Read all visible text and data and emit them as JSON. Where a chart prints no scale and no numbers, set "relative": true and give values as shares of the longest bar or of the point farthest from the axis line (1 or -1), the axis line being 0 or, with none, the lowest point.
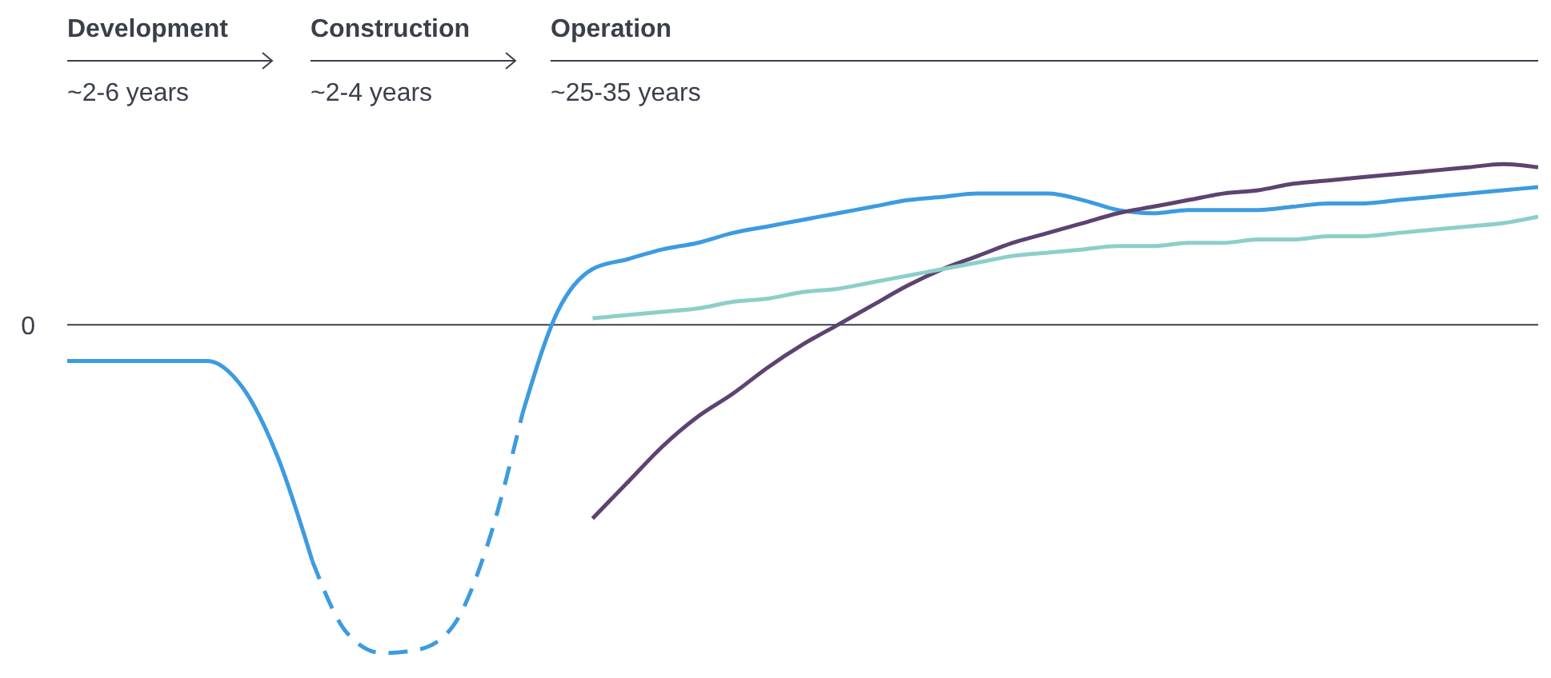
{
  "chart_data": {
    "type": "line",
    "relative": true,
    "marker": "none",
    "line_style": "solid",
    "annotations": [
      "Development",
      "~2-6 years",
      "Construction",
      "~2-4 years",
      "Operation",
      "~25-35 years"
    ],
    "ref_lines": [
      {
        "axis": "y",
        "value": 0,
        "label": "0",
        "color": "#3a3f4a"
      }
    ],
    "categories": [
      null,
      null,
      null,
      null,
      null,
      null,
      null,
      null,
      null,
      null,
      null,
      null,
      null,
      null,
      null,
      null,
      null,
      null,
      null,
      null,
      null,
      null,
      null,
      null,
      null,
      null,
      null,
      null,
      null,
      null,
      null,
      null,
      null,
      null,
      null,
      null,
      null,
      null,
      null,
      null,
      null,
      null,
      null
    ],
    "series": [
      {
        "color": "#3d9be0",
        "values": [
          -0.11,
          -0.11,
          -0.11,
          -0.11,
          -0.11,
          -0.19,
          -0.4,
          -0.72,
          null,
          null,
          null,
          null,
          null,
          -0.27,
          0.04,
          0.17,
          0.2,
          0.23,
          0.25,
          0.28,
          0.3,
          0.32,
          0.34,
          0.36,
          0.38,
          0.39,
          0.4,
          0.4,
          0.4,
          0.38,
          0.35,
          0.34,
          0.35,
          0.35,
          0.35,
          0.36,
          0.37,
          0.37,
          0.38,
          0.39,
          0.4,
          0.41,
          0.42
        ]
      },
      {
        "color": "#3d9be0",
        "line_style": "dashed",
        "values": [
          null,
          null,
          null,
          null,
          null,
          null,
          null,
          -0.72,
          -0.94,
          -1,
          -0.99,
          -0.92,
          -0.67,
          -0.27,
          null,
          null,
          null,
          null,
          null,
          null,
          null,
          null,
          null,
          null,
          null,
          null,
          null,
          null,
          null,
          null,
          null,
          null,
          null,
          null,
          null,
          null,
          null,
          null,
          null,
          null,
          null,
          null,
          null
        ]
      },
      {
        "color": "#5c4370",
        "values": [
          null,
          null,
          null,
          null,
          null,
          null,
          null,
          null,
          null,
          null,
          null,
          null,
          null,
          null,
          null,
          -0.59,
          -0.48,
          -0.37,
          -0.28,
          -0.21,
          -0.13,
          -0.06,
          0.0,
          0.06,
          0.12,
          0.17,
          0.21,
          0.25,
          0.28,
          0.31,
          0.34,
          0.36,
          0.38,
          0.4,
          0.41,
          0.43,
          0.44,
          0.45,
          0.46,
          0.47,
          0.48,
          0.49,
          0.48
        ]
      },
      {
        "color": "#8ccfc8",
        "values": [
          null,
          null,
          null,
          null,
          null,
          null,
          null,
          null,
          null,
          null,
          null,
          null,
          null,
          null,
          null,
          0.02,
          0.03,
          0.04,
          0.05,
          0.07,
          0.08,
          0.1,
          0.11,
          0.13,
          0.15,
          0.17,
          0.19,
          0.21,
          0.22,
          0.23,
          0.24,
          0.24,
          0.25,
          0.25,
          0.26,
          0.26,
          0.27,
          0.27,
          0.28,
          0.29,
          0.3,
          0.31,
          0.33
        ]
      }
    ]
  }
}
